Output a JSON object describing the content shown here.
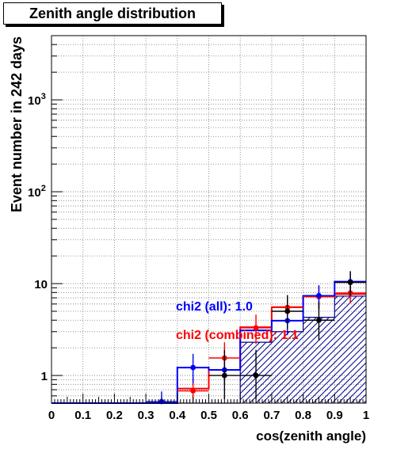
{
  "chart_data": {
    "type": "step-histogram",
    "title": "Zenith angle distribution",
    "xlabel": "cos(zenith angle)",
    "ylabel": "Event number in 242 days",
    "xlim": [
      0,
      1
    ],
    "ylim": [
      0.5,
      5000
    ],
    "yscale": "log",
    "grid": true,
    "x_ticks": [
      "0",
      "0.1",
      "0.2",
      "0.3",
      "0.4",
      "0.5",
      "0.6",
      "0.7",
      "0.8",
      "0.9",
      "1"
    ],
    "y_ticks": [
      {
        "label": "1",
        "value": 1,
        "exp": ""
      },
      {
        "label": "10",
        "value": 10,
        "exp": ""
      },
      {
        "label": "10",
        "value": 100,
        "exp": "2"
      },
      {
        "label": "10",
        "value": 1000,
        "exp": "3"
      }
    ],
    "bin_edges": [
      0,
      0.1,
      0.2,
      0.3,
      0.4,
      0.5,
      0.6,
      0.7,
      0.8,
      0.9,
      1.0
    ],
    "series": [
      {
        "role": "hatched-histogram",
        "color": "#00008b",
        "values": [
          0.5,
          0.5,
          0.5,
          0.5,
          0.5,
          0.5,
          2.3,
          3.0,
          4.3,
          7.3
        ]
      },
      {
        "role": "histogram-red",
        "color": "#ff0000",
        "values": [
          null,
          null,
          null,
          null,
          0.72,
          1.15,
          3.35,
          5.55,
          7.3,
          7.7
        ]
      },
      {
        "role": "histogram-blue",
        "color": "#0000ff",
        "values": [
          0.5,
          0.5,
          0.5,
          0.5,
          1.22,
          1.15,
          3.1,
          3.95,
          7.3,
          10.5
        ]
      },
      {
        "role": "points-red",
        "color": "#ff0000",
        "x": [
          0.45,
          0.55,
          0.65,
          0.75,
          0.85,
          0.95
        ],
        "y": [
          0.68,
          1.55,
          3.3,
          5.5,
          7.2,
          7.9
        ],
        "err_low": [
          0.18,
          0.5,
          1.1,
          1.4,
          2.0,
          1.8
        ],
        "err_high": [
          0.25,
          0.75,
          1.3,
          1.6,
          2.3,
          2.2
        ]
      },
      {
        "role": "points-blue",
        "color": "#0000ff",
        "x": [
          0.35,
          0.45,
          0.55,
          0.75,
          0.85,
          0.95
        ],
        "y": [
          0.52,
          1.22,
          1.15,
          3.95,
          7.4,
          10.5
        ],
        "err_low": [
          0.1,
          0.4,
          0.35,
          1.2,
          2.0,
          3.0
        ],
        "err_high": [
          0.15,
          0.5,
          0.45,
          1.3,
          2.2,
          3.2
        ]
      },
      {
        "role": "points-black",
        "color": "#000000",
        "x": [
          0.55,
          0.65,
          0.75,
          0.85,
          0.95
        ],
        "y": [
          1.0,
          1.0,
          5.0,
          4.0,
          10.3
        ],
        "err_low": [
          0.45,
          0.45,
          1.8,
          1.6,
          2.9
        ],
        "err_high": [
          0.9,
          0.9,
          2.5,
          2.3,
          3.2
        ]
      }
    ],
    "annotations": [
      {
        "text": "chi2 (all): 1.0",
        "color": "#0000ff"
      },
      {
        "text": "chi2 (combined): 1.1",
        "color": "#ff0000"
      }
    ]
  }
}
